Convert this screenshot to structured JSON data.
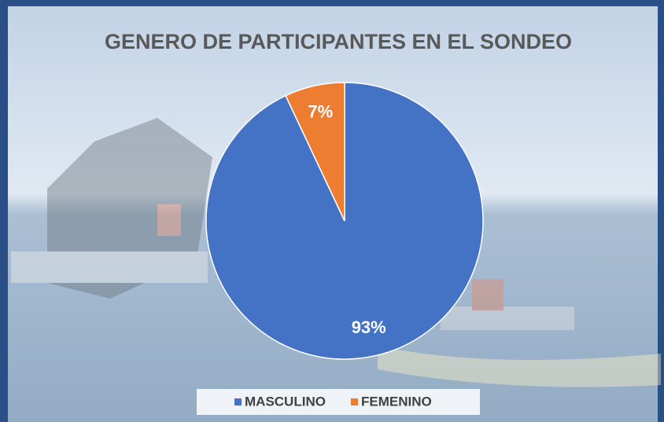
{
  "chart_data": {
    "type": "pie",
    "title": "GENERO DE PARTICIPANTES EN EL SONDEO",
    "categories": [
      "MASCULINO",
      "FEMENINO"
    ],
    "values": [
      93,
      7
    ],
    "value_labels": [
      "93%",
      "7%"
    ],
    "colors": [
      "#4472c4",
      "#ed7d31"
    ],
    "legend": "bottom"
  }
}
